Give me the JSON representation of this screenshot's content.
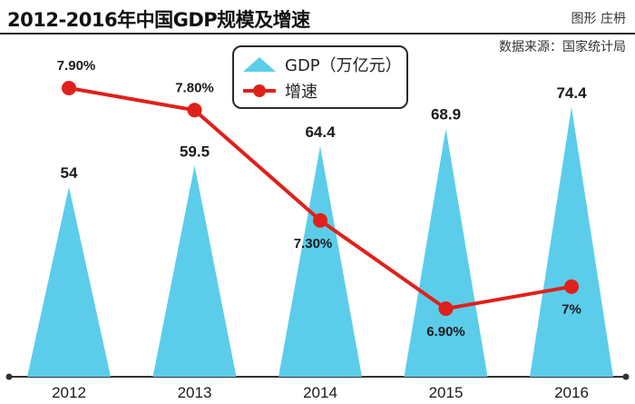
{
  "header": {
    "title": "2012-2016年中国GDP规模及增速",
    "credit": "图形 庄枬",
    "source": "数据来源：国家统计局"
  },
  "legend": {
    "gdp_label": "GDP（万亿元）",
    "rate_label": "增速"
  },
  "colors": {
    "gdp_triangle": "#5bcdea",
    "rate_line": "#e0201b",
    "axis": "#333333",
    "label_text": "#1a1a1a"
  },
  "chart_data": {
    "type": "bar",
    "title": "2012-2016年中国GDP规模及增速",
    "categories": [
      "2012",
      "2013",
      "2014",
      "2015",
      "2016"
    ],
    "series": [
      {
        "name": "GDP（万亿元）",
        "style": "triangle-bar",
        "values": [
          54,
          59.5,
          64.4,
          68.9,
          74.4
        ],
        "labels": [
          "54",
          "59.5",
          "64.4",
          "68.9",
          "74.4"
        ]
      },
      {
        "name": "增速",
        "style": "line",
        "unit": "%",
        "values": [
          7.9,
          7.8,
          7.3,
          6.9,
          7.0
        ],
        "labels": [
          "7.90%",
          "7.80%",
          "7.30%",
          "6.90%",
          "7%"
        ]
      }
    ],
    "xlabel": "",
    "ylabel": "",
    "gdp_ylim": [
      0,
      80
    ],
    "rate_ylim": [
      6.4,
      8.3
    ],
    "grid": false,
    "legend_position": "top-center"
  }
}
